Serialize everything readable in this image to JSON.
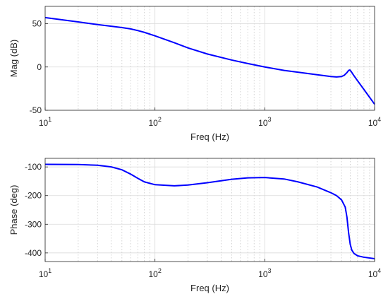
{
  "chart_data": [
    {
      "type": "line",
      "xlabel": "Freq (Hz)",
      "ylabel": "Mag (dB)",
      "xscale": "log",
      "xlim": [
        10,
        10000
      ],
      "ylim": [
        -50,
        70
      ],
      "grid": true,
      "xticks": [
        {
          "value": 10,
          "label": "10"
        },
        {
          "value": 100,
          "label": "10"
        },
        {
          "value": 1000,
          "label": "10"
        },
        {
          "value": 10000,
          "label": "10"
        }
      ],
      "xtick_exponents": [
        "1",
        "2",
        "3",
        "4"
      ],
      "yticks": [
        {
          "value": 50,
          "label": "50"
        },
        {
          "value": 0,
          "label": "0"
        },
        {
          "value": -50,
          "label": "-50"
        }
      ],
      "series": [
        {
          "color": "#0000ff",
          "points": [
            [
              10,
              57
            ],
            [
              20,
              52
            ],
            [
              30,
              49
            ],
            [
              40,
              47
            ],
            [
              50,
              45.5
            ],
            [
              60,
              44
            ],
            [
              70,
              42
            ],
            [
              80,
              40
            ],
            [
              100,
              36
            ],
            [
              150,
              28
            ],
            [
              200,
              22
            ],
            [
              300,
              15
            ],
            [
              500,
              8
            ],
            [
              700,
              4
            ],
            [
              1000,
              0
            ],
            [
              1500,
              -4
            ],
            [
              2000,
              -6
            ],
            [
              3000,
              -9
            ],
            [
              4000,
              -11
            ],
            [
              4500,
              -11.5
            ],
            [
              5000,
              -11
            ],
            [
              5300,
              -9.5
            ],
            [
              5600,
              -6.5
            ],
            [
              5800,
              -4
            ],
            [
              5950,
              -3.5
            ],
            [
              6100,
              -5
            ],
            [
              6400,
              -9
            ],
            [
              7000,
              -16
            ],
            [
              8000,
              -26
            ],
            [
              9000,
              -35
            ],
            [
              10000,
              -43
            ]
          ]
        }
      ]
    },
    {
      "type": "line",
      "xlabel": "Freq (Hz)",
      "ylabel": "Phase (deg)",
      "xscale": "log",
      "xlim": [
        10,
        10000
      ],
      "ylim": [
        -430,
        -70
      ],
      "grid": true,
      "xticks": [
        {
          "value": 10,
          "label": "10"
        },
        {
          "value": 100,
          "label": "10"
        },
        {
          "value": 1000,
          "label": "10"
        },
        {
          "value": 10000,
          "label": "10"
        }
      ],
      "xtick_exponents": [
        "1",
        "2",
        "3",
        "4"
      ],
      "yticks": [
        {
          "value": -100,
          "label": "-100"
        },
        {
          "value": -200,
          "label": "-200"
        },
        {
          "value": -300,
          "label": "-300"
        },
        {
          "value": -400,
          "label": "-400"
        }
      ],
      "series": [
        {
          "color": "#0000ff",
          "points": [
            [
              10,
              -91
            ],
            [
              20,
              -91.5
            ],
            [
              30,
              -94
            ],
            [
              40,
              -100
            ],
            [
              50,
              -110
            ],
            [
              60,
              -125
            ],
            [
              70,
              -140
            ],
            [
              80,
              -152
            ],
            [
              100,
              -162
            ],
            [
              150,
              -166
            ],
            [
              200,
              -163
            ],
            [
              300,
              -155
            ],
            [
              500,
              -143
            ],
            [
              700,
              -138
            ],
            [
              1000,
              -137
            ],
            [
              1500,
              -142
            ],
            [
              2000,
              -152
            ],
            [
              3000,
              -170
            ],
            [
              4000,
              -190
            ],
            [
              4500,
              -200
            ],
            [
              5000,
              -215
            ],
            [
              5400,
              -240
            ],
            [
              5600,
              -275
            ],
            [
              5800,
              -330
            ],
            [
              6000,
              -370
            ],
            [
              6200,
              -390
            ],
            [
              6500,
              -402
            ],
            [
              7000,
              -410
            ],
            [
              8000,
              -415
            ],
            [
              10000,
              -420
            ]
          ]
        }
      ]
    }
  ]
}
